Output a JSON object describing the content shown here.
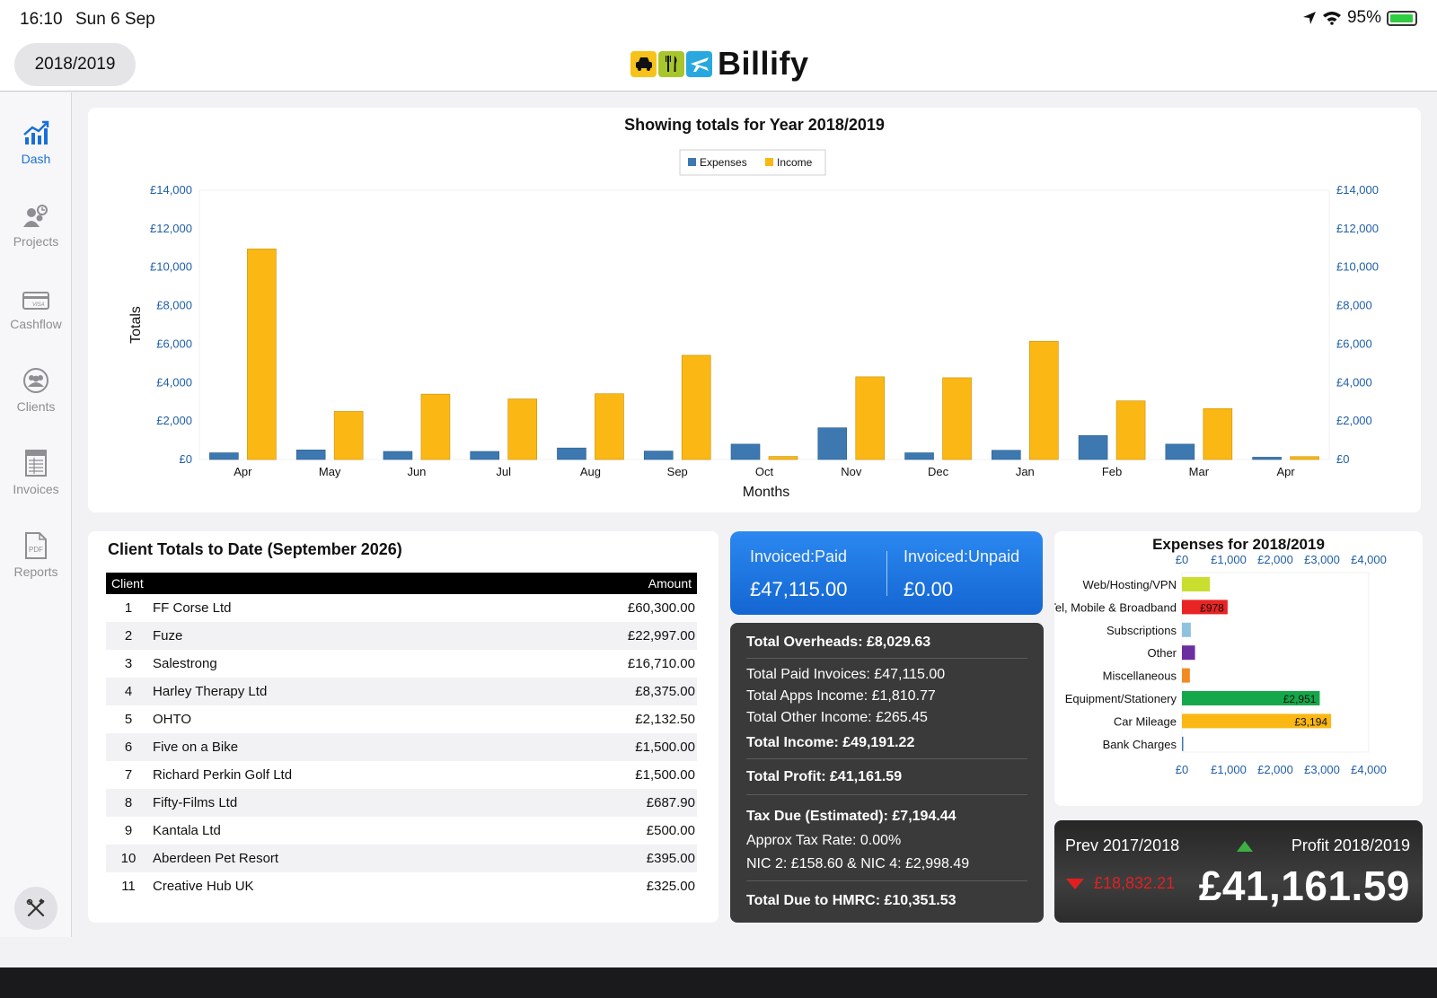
{
  "status_bar": {
    "time": "16:10",
    "date": "Sun 6 Sep",
    "battery": "95%",
    "battery_level": 0.95
  },
  "header": {
    "year_selector": "2018/2019",
    "app_name": "Billify",
    "logo_icons": [
      "taxi-icon",
      "cutlery-icon",
      "plane-icon"
    ]
  },
  "sidebar": {
    "items": [
      {
        "label": "Dash",
        "icon": "chart-icon",
        "active": true
      },
      {
        "label": "Projects",
        "icon": "people-gear-icon",
        "active": false
      },
      {
        "label": "Cashflow",
        "icon": "credit-card-icon",
        "active": false
      },
      {
        "label": "Clients",
        "icon": "group-icon",
        "active": false
      },
      {
        "label": "Invoices",
        "icon": "invoice-icon",
        "active": false
      },
      {
        "label": "Reports",
        "icon": "pdf-icon",
        "active": false
      }
    ],
    "tools_icon": "tools-icon"
  },
  "chart_data": [
    {
      "type": "bar",
      "title": "Showing totals for Year 2018/2019",
      "xlabel": "Months",
      "ylabel": "Totals",
      "categories": [
        "Apr",
        "May",
        "Jun",
        "Jul",
        "Aug",
        "Sep",
        "Oct",
        "Nov",
        "Dec",
        "Jan",
        "Feb",
        "Mar",
        "Apr"
      ],
      "series": [
        {
          "name": "Expenses",
          "color": "#3d78b0",
          "values": [
            350,
            500,
            420,
            420,
            600,
            440,
            800,
            1650,
            350,
            480,
            1250,
            800,
            120
          ]
        },
        {
          "name": "Income",
          "color": "#fbb814",
          "values": [
            10950,
            2500,
            3400,
            3150,
            3420,
            5420,
            160,
            4300,
            4250,
            6150,
            3050,
            2650,
            150
          ]
        }
      ],
      "ylim": [
        0,
        14000
      ],
      "yticks": [
        "£0",
        "£2,000",
        "£4,000",
        "£6,000",
        "£8,000",
        "£10,000",
        "£12,000",
        "£14,000"
      ],
      "legend": "top-center",
      "grid": false
    },
    {
      "type": "bar",
      "orientation": "horizontal",
      "title": "Expenses for 2018/2019",
      "categories": [
        "Web/Hosting/VPN",
        "Tel, Mobile & Broadband",
        "Subscriptions",
        "Other",
        "Miscellaneous",
        "Equipment/Stationery",
        "Car Mileage",
        "Bank Charges"
      ],
      "values": [
        600,
        978,
        190,
        280,
        170,
        2951,
        3194,
        20
      ],
      "value_labels": [
        "",
        "£978",
        "",
        "",
        "",
        "£2,951",
        "£3,194",
        ""
      ],
      "colors": [
        "#c9de2e",
        "#e82424",
        "#8ec3e0",
        "#6b2fa0",
        "#f28a24",
        "#14a84a",
        "#fbb814",
        "#3d78b0"
      ],
      "xlim": [
        0,
        4000
      ],
      "xticks": [
        "£0",
        "£1,000",
        "£2,000",
        "£3,000",
        "£4,000"
      ],
      "grid": false
    }
  ],
  "clients": {
    "title": "Client Totals to Date (September 2026)",
    "headers": {
      "client": "Client",
      "amount": "Amount"
    },
    "rows": [
      {
        "n": "1",
        "name": "FF Corse Ltd",
        "amount": "£60,300.00"
      },
      {
        "n": "2",
        "name": "Fuze",
        "amount": "£22,997.00"
      },
      {
        "n": "3",
        "name": "Salestrong",
        "amount": "£16,710.00"
      },
      {
        "n": "4",
        "name": "Harley Therapy Ltd",
        "amount": "£8,375.00"
      },
      {
        "n": "5",
        "name": "OHTO",
        "amount": "£2,132.50"
      },
      {
        "n": "6",
        "name": "Five on a Bike",
        "amount": "£1,500.00"
      },
      {
        "n": "7",
        "name": "Richard Perkin Golf Ltd",
        "amount": "£1,500.00"
      },
      {
        "n": "8",
        "name": "Fifty-Films Ltd",
        "amount": "£687.90"
      },
      {
        "n": "9",
        "name": "Kantala Ltd",
        "amount": "£500.00"
      },
      {
        "n": "10",
        "name": "Aberdeen Pet Resort",
        "amount": "£395.00"
      },
      {
        "n": "11",
        "name": "Creative Hub UK",
        "amount": "£325.00"
      }
    ]
  },
  "invoiced": {
    "paid_label": "Invoiced:Paid",
    "paid_value": "£47,115.00",
    "unpaid_label": "Invoiced:Unpaid",
    "unpaid_value": "£0.00"
  },
  "summary": {
    "overheads": "Total Overheads: £8,029.63",
    "paid_invoices": "Total Paid Invoices: £47,115.00",
    "apps_income": "Total Apps Income: £1,810.77",
    "other_income": "Total Other Income: £265.45",
    "total_income": "Total Income: £49,191.22",
    "total_profit": "Total Profit: £41,161.59",
    "tax_due": "Tax Due (Estimated): £7,194.44",
    "tax_rate": "Approx Tax Rate: 0.00%",
    "nic": "NIC 2: £158.60 & NIC 4: £2,998.49",
    "total_due": "Total Due to HMRC: £10,351.53"
  },
  "profit": {
    "prev_label": "Prev 2017/2018",
    "prev_value": "£18,832.21",
    "curr_label": "Profit 2018/2019",
    "curr_value": "£41,161.59",
    "up_color": "#3cb043",
    "down_color": "#e02020"
  }
}
